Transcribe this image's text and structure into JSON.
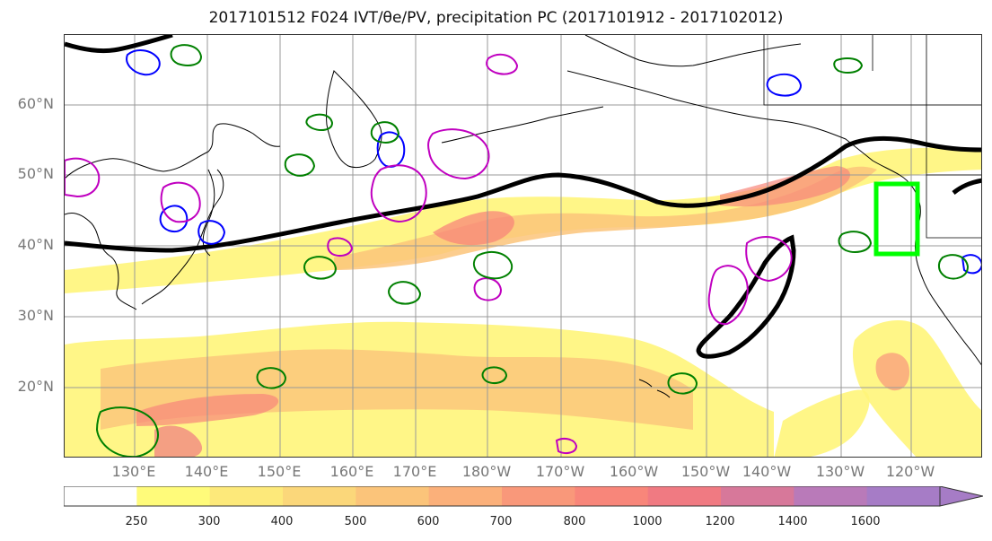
{
  "title": "2017101512 F024 IVT/θe/PV, precipitation PC (2017101912 - 2017102012)",
  "lat_labels": [
    "60°N",
    "50°N",
    "40°N",
    "30°N",
    "20°N"
  ],
  "lon_labels": [
    "130°E",
    "140°E",
    "150°E",
    "160°E",
    "170°E",
    "180°W",
    "170°W",
    "160°W",
    "150°W",
    "140°W",
    "130°W",
    "120°W"
  ],
  "colorbar": {
    "levels": [
      "250",
      "300",
      "400",
      "500",
      "600",
      "700",
      "800",
      "1000",
      "1200",
      "1400",
      "1600"
    ],
    "colors": [
      "#ffffff",
      "#fffb7a",
      "#fde97a",
      "#fbd77a",
      "#fbc47a",
      "#fbb07a",
      "#f9987a",
      "#f8867a",
      "#f07a82",
      "#d7789a",
      "#b97ab9",
      "#a67cc6"
    ],
    "extend": "max"
  },
  "colors": {
    "ivt_contour": "#000000",
    "theta_e": "#008000",
    "pv_blue": "#0000ff",
    "pv_magenta": "#c000c0",
    "target_box": "#00ff00"
  }
}
